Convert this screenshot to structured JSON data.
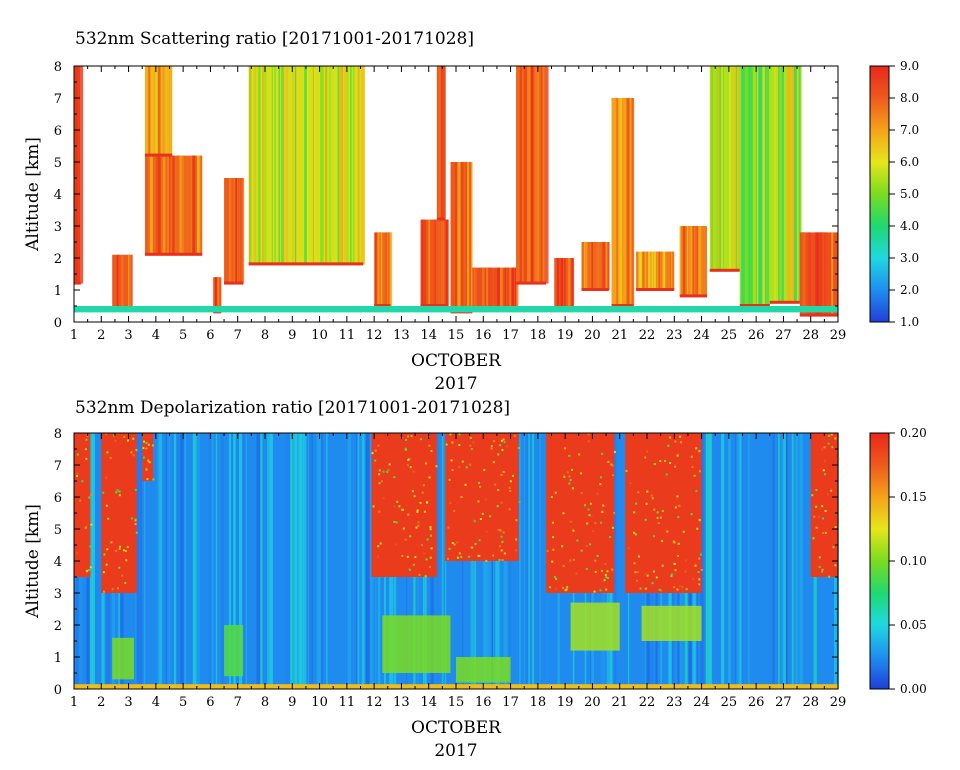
{
  "chart_data": [
    {
      "type": "heatmap",
      "title": "532nm Scattering ratio [20171001-20171028]",
      "ylabel": "Altitude [km]",
      "xlabel": "OCTOBER",
      "xlabel2": "2017",
      "x_ticks": [
        "1",
        "2",
        "3",
        "4",
        "5",
        "6",
        "7",
        "8",
        "9",
        "10",
        "11",
        "12",
        "13",
        "14",
        "15",
        "16",
        "17",
        "18",
        "19",
        "20",
        "21",
        "22",
        "23",
        "24",
        "25",
        "26",
        "27",
        "28",
        "29"
      ],
      "y_ticks": [
        "0",
        "1",
        "2",
        "3",
        "4",
        "5",
        "6",
        "7",
        "8"
      ],
      "xlim": [
        1,
        29
      ],
      "ylim": [
        0,
        8
      ],
      "colorbar": {
        "min": 1.0,
        "max": 9.0,
        "ticks": [
          "1.0",
          "2.0",
          "3.0",
          "4.0",
          "5.0",
          "6.0",
          "7.0",
          "8.0",
          "9.0"
        ],
        "colors": [
          "#1f3fd8",
          "#1f8ef0",
          "#1fd8e0",
          "#20d870",
          "#7adc20",
          "#e6e61a",
          "#f5a21a",
          "#ee5a1c",
          "#e8281c"
        ]
      },
      "cloud_episodes": [
        {
          "start": 1.0,
          "end": 1.25,
          "bottom": 1.2,
          "top": 8.0,
          "value": 8.3
        },
        {
          "start": 2.4,
          "end": 3.1,
          "bottom": 0.4,
          "top": 2.1,
          "value": 8.0
        },
        {
          "start": 3.6,
          "end": 5.7,
          "bottom": 2.1,
          "top": 5.2,
          "value": 7.8
        },
        {
          "start": 3.6,
          "end": 4.6,
          "bottom": 5.2,
          "top": 8.0,
          "value": 6.8
        },
        {
          "start": 6.1,
          "end": 6.4,
          "bottom": 0.3,
          "top": 1.4,
          "value": 8.0
        },
        {
          "start": 6.5,
          "end": 7.2,
          "bottom": 1.2,
          "top": 4.5,
          "value": 8.0
        },
        {
          "start": 7.4,
          "end": 11.6,
          "bottom": 1.8,
          "top": 8.0,
          "value": 5.8
        },
        {
          "start": 12.0,
          "end": 12.6,
          "bottom": 0.5,
          "top": 2.8,
          "value": 7.8
        },
        {
          "start": 13.7,
          "end": 14.7,
          "bottom": 0.5,
          "top": 3.2,
          "value": 8.0
        },
        {
          "start": 14.3,
          "end": 14.6,
          "bottom": 3.2,
          "top": 8.0,
          "value": 8.5
        },
        {
          "start": 14.8,
          "end": 15.6,
          "bottom": 0.3,
          "top": 5.0,
          "value": 8.0
        },
        {
          "start": 15.6,
          "end": 17.2,
          "bottom": 0.4,
          "top": 1.7,
          "value": 8.2
        },
        {
          "start": 17.2,
          "end": 18.3,
          "bottom": 1.2,
          "top": 8.0,
          "value": 7.8
        },
        {
          "start": 18.6,
          "end": 19.3,
          "bottom": 0.4,
          "top": 2.0,
          "value": 8.0
        },
        {
          "start": 19.6,
          "end": 20.6,
          "bottom": 1.0,
          "top": 2.5,
          "value": 7.8
        },
        {
          "start": 20.7,
          "end": 21.5,
          "bottom": 0.5,
          "top": 7.0,
          "value": 7.0
        },
        {
          "start": 21.6,
          "end": 23.0,
          "bottom": 1.0,
          "top": 2.2,
          "value": 7.5
        },
        {
          "start": 23.2,
          "end": 24.2,
          "bottom": 0.8,
          "top": 3.0,
          "value": 7.5
        },
        {
          "start": 24.3,
          "end": 25.4,
          "bottom": 1.6,
          "top": 8.0,
          "value": 5.5
        },
        {
          "start": 25.4,
          "end": 26.5,
          "bottom": 0.5,
          "top": 8.0,
          "value": 5.0
        },
        {
          "start": 26.5,
          "end": 27.6,
          "bottom": 0.6,
          "top": 8.0,
          "value": 5.5
        },
        {
          "start": 27.6,
          "end": 29.0,
          "bottom": 0.2,
          "top": 2.8,
          "value": 8.2
        }
      ],
      "near_surface_layer": {
        "bottom": 0.3,
        "top": 0.5,
        "value": 3.5
      }
    },
    {
      "type": "heatmap",
      "title": "532nm Depolarization ratio [20171001-20171028]",
      "ylabel": "Altitude [km]",
      "xlabel": "OCTOBER",
      "xlabel2": "2017",
      "x_ticks": [
        "1",
        "2",
        "3",
        "4",
        "5",
        "6",
        "7",
        "8",
        "9",
        "10",
        "11",
        "12",
        "13",
        "14",
        "15",
        "16",
        "17",
        "18",
        "19",
        "20",
        "21",
        "22",
        "23",
        "24",
        "25",
        "26",
        "27",
        "28",
        "29"
      ],
      "y_ticks": [
        "0",
        "1",
        "2",
        "3",
        "4",
        "5",
        "6",
        "7",
        "8"
      ],
      "xlim": [
        1,
        29
      ],
      "ylim": [
        0,
        8
      ],
      "colorbar": {
        "min": 0.0,
        "max": 0.2,
        "ticks": [
          "0.00",
          "0.05",
          "0.10",
          "0.15",
          "0.20"
        ],
        "colors": [
          "#1f3fd8",
          "#1f8ef0",
          "#1fd8e0",
          "#20d870",
          "#7adc20",
          "#e6e61a",
          "#f5a21a",
          "#ee5a1c",
          "#e8281c"
        ]
      },
      "high_depol_episodes": [
        {
          "start": 1.0,
          "end": 1.6,
          "bottom": 3.5,
          "top": 8.0,
          "value": 0.19
        },
        {
          "start": 2.0,
          "end": 3.3,
          "bottom": 3.0,
          "top": 8.0,
          "value": 0.19
        },
        {
          "start": 3.5,
          "end": 3.9,
          "bottom": 6.5,
          "top": 8.0,
          "value": 0.19
        },
        {
          "start": 11.9,
          "end": 14.3,
          "bottom": 3.5,
          "top": 8.0,
          "value": 0.19
        },
        {
          "start": 14.6,
          "end": 17.3,
          "bottom": 4.0,
          "top": 8.0,
          "value": 0.19
        },
        {
          "start": 18.3,
          "end": 20.8,
          "bottom": 3.0,
          "top": 8.0,
          "value": 0.19
        },
        {
          "start": 21.2,
          "end": 24.0,
          "bottom": 3.0,
          "top": 8.0,
          "value": 0.19
        },
        {
          "start": 28.0,
          "end": 29.0,
          "bottom": 3.5,
          "top": 8.0,
          "value": 0.19
        }
      ],
      "low_layer_episodes": [
        {
          "start": 2.4,
          "end": 3.2,
          "bottom": 0.3,
          "top": 1.6,
          "value": 0.1
        },
        {
          "start": 6.5,
          "end": 7.2,
          "bottom": 0.4,
          "top": 2.0,
          "value": 0.09
        },
        {
          "start": 12.3,
          "end": 14.8,
          "bottom": 0.5,
          "top": 2.3,
          "value": 0.1
        },
        {
          "start": 15.0,
          "end": 17.0,
          "bottom": 0.2,
          "top": 1.0,
          "value": 0.1
        },
        {
          "start": 19.2,
          "end": 21.0,
          "bottom": 1.2,
          "top": 2.7,
          "value": 0.11
        },
        {
          "start": 21.8,
          "end": 24.0,
          "bottom": 1.5,
          "top": 2.6,
          "value": 0.11
        }
      ],
      "near_surface_layer": {
        "bottom": 0.0,
        "top": 0.15,
        "value": 0.14
      }
    }
  ]
}
